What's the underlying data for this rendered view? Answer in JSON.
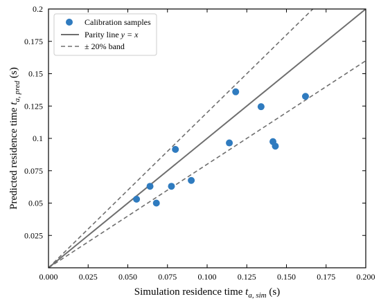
{
  "chart_data": {
    "type": "scatter",
    "xlim": [
      0.0,
      0.2
    ],
    "ylim": [
      0.0,
      0.2
    ],
    "x_ticks": [
      0.0,
      0.025,
      0.05,
      0.075,
      0.1,
      0.125,
      0.15,
      0.175,
      0.2
    ],
    "y_ticks": [
      0.025,
      0.05,
      0.075,
      0.1,
      0.125,
      0.15,
      0.175,
      0.2
    ],
    "x_tick_labels": [
      "0.000",
      "0.025",
      "0.050",
      "0.075",
      "0.100",
      "0.125",
      "0.150",
      "0.175",
      "0.200"
    ],
    "y_tick_labels": [
      "0.025",
      "0.05",
      "0.075",
      "0.1",
      "0.125",
      "0.15",
      "0.175",
      "0.2"
    ],
    "xlabel": {
      "prefix": "Simulation residence time ",
      "var": "t",
      "sub": "a, sim",
      "suffix": " (s)"
    },
    "ylabel": {
      "prefix": "Predicted residence time ",
      "var": "t",
      "sub": "a, pred",
      "suffix": " (s)"
    },
    "grid": false,
    "legend_position": "top-left",
    "series": [
      {
        "name": "Calibration samples",
        "kind": "points",
        "color": "#2f7bbf",
        "points": [
          [
            0.0555,
            0.053
          ],
          [
            0.064,
            0.063
          ],
          [
            0.068,
            0.05
          ],
          [
            0.0775,
            0.063
          ],
          [
            0.08,
            0.0915
          ],
          [
            0.09,
            0.0675
          ],
          [
            0.114,
            0.0965
          ],
          [
            0.118,
            0.136
          ],
          [
            0.134,
            0.1245
          ],
          [
            0.1415,
            0.0975
          ],
          [
            0.143,
            0.094
          ],
          [
            0.162,
            0.1325
          ]
        ]
      },
      {
        "name": "Parity line y = x",
        "legend_label": {
          "prefix": "Parity line ",
          "math": "y = x"
        },
        "kind": "line",
        "style": "solid",
        "color": "#6e6e6e",
        "slope": 1.0
      },
      {
        "name": "± 20% band",
        "kind": "band",
        "style": "dashed",
        "color": "#6e6e6e",
        "slopes": [
          1.2,
          0.8
        ]
      }
    ]
  }
}
